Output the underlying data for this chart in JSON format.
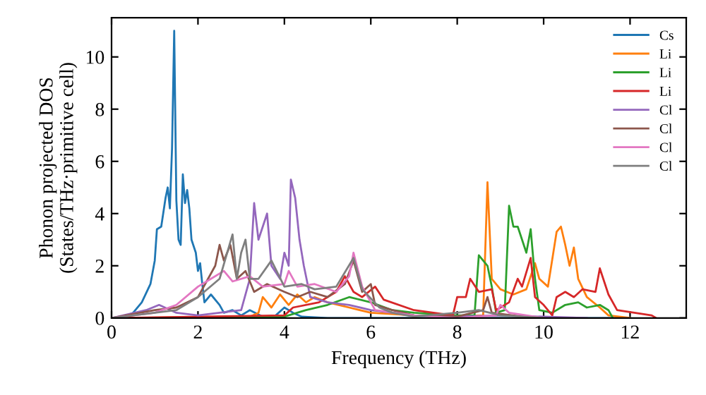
{
  "chart_data": {
    "type": "line",
    "xlabel": "Frequency (THz)",
    "ylabel": "Phonon projected DOS\n(States/THz·primitive cell)",
    "xlim": [
      0,
      13.3
    ],
    "ylim": [
      0,
      11.5
    ],
    "xticks": [
      0,
      2,
      4,
      6,
      8,
      10,
      12
    ],
    "yticks": [
      0,
      2,
      4,
      6,
      8,
      10
    ],
    "grid": false,
    "legend": "top right",
    "marker": "none",
    "line_style": "solid",
    "series": [
      {
        "name": "Cs",
        "color": "#1f77b4",
        "x": [
          0,
          0.3,
          0.5,
          0.7,
          0.9,
          1.0,
          1.05,
          1.15,
          1.25,
          1.3,
          1.35,
          1.4,
          1.45,
          1.5,
          1.55,
          1.6,
          1.65,
          1.7,
          1.75,
          1.8,
          1.85,
          1.95,
          2.0,
          2.05,
          2.1,
          2.15,
          2.3,
          2.5,
          2.6,
          2.8,
          3.0,
          3.2,
          3.5,
          3.8,
          4.0,
          4.2,
          4.4,
          5,
          7,
          12
        ],
        "values": [
          0,
          0.05,
          0.2,
          0.6,
          1.3,
          2.2,
          3.4,
          3.5,
          4.6,
          5.0,
          4.2,
          6.5,
          11.0,
          4.5,
          3.0,
          2.8,
          5.5,
          4.4,
          4.9,
          4.2,
          3.0,
          2.5,
          1.8,
          2.1,
          1.3,
          0.6,
          0.9,
          0.5,
          0.2,
          0.3,
          0.1,
          0.3,
          0.05,
          0.1,
          0.4,
          0.2,
          0.05,
          0,
          0,
          0
        ]
      },
      {
        "name": "Li",
        "color": "#ff7f0e",
        "x": [
          0,
          3.2,
          3.4,
          3.5,
          3.7,
          3.9,
          4.1,
          4.3,
          4.5,
          4.7,
          5,
          5.5,
          6,
          7,
          8,
          8.6,
          8.7,
          8.8,
          9.0,
          9.3,
          9.6,
          9.8,
          9.9,
          10.1,
          10.3,
          10.4,
          10.5,
          10.6,
          10.7,
          10.8,
          11.0,
          11.3,
          11.5,
          12
        ],
        "values": [
          0,
          0.05,
          0.2,
          0.8,
          0.4,
          0.9,
          0.5,
          0.9,
          0.6,
          0.8,
          0.6,
          0.4,
          0.2,
          0.1,
          0.05,
          0.1,
          5.2,
          1.5,
          1.1,
          0.9,
          1.1,
          2.1,
          1.5,
          1.2,
          3.3,
          3.5,
          2.8,
          2.0,
          2.7,
          1.5,
          0.8,
          0.4,
          0.1,
          0
        ]
      },
      {
        "name": "Li",
        "color": "#2ca02c",
        "x": [
          0,
          4,
          4.5,
          5,
          5.5,
          6,
          6.5,
          7,
          8,
          8.4,
          8.5,
          8.7,
          8.8,
          8.9,
          9.1,
          9.2,
          9.3,
          9.4,
          9.6,
          9.7,
          9.8,
          9.9,
          10.2,
          10.5,
          10.8,
          11.0,
          11.3,
          11.5,
          11.6
        ],
        "values": [
          0,
          0.05,
          0.3,
          0.5,
          0.8,
          0.6,
          0.3,
          0.2,
          0.1,
          0.1,
          2.4,
          2.0,
          1.2,
          0.2,
          0.3,
          4.3,
          3.5,
          3.5,
          2.5,
          3.4,
          1.5,
          0.3,
          0.2,
          0.5,
          0.6,
          0.4,
          0.5,
          0.3,
          0
        ]
      },
      {
        "name": "Li",
        "color": "#d62728",
        "x": [
          0,
          4,
          4.2,
          4.8,
          5.2,
          5.4,
          5.6,
          5.8,
          6.1,
          6.3,
          7,
          7.9,
          8.0,
          8.2,
          8.3,
          8.5,
          8.8,
          8.9,
          9.2,
          9.4,
          9.5,
          9.7,
          9.8,
          10.0,
          10.2,
          10.3,
          10.5,
          10.7,
          10.9,
          11.2,
          11.3,
          11.5,
          11.7,
          12.5,
          12.6
        ],
        "values": [
          0,
          0.1,
          0.4,
          0.6,
          1.0,
          1.6,
          1.0,
          0.8,
          1.2,
          0.7,
          0.3,
          0.1,
          0.8,
          0.8,
          1.5,
          1.0,
          1.1,
          0.3,
          0.6,
          1.5,
          1.2,
          2.3,
          0.8,
          0.5,
          0.1,
          0.8,
          1.0,
          0.8,
          1.1,
          1.0,
          1.9,
          0.9,
          0.3,
          0.1,
          0
        ]
      },
      {
        "name": "Cl",
        "color": "#9467bd",
        "x": [
          0,
          0.8,
          1.1,
          1.5,
          2.0,
          2.5,
          3.0,
          3.2,
          3.3,
          3.4,
          3.6,
          3.7,
          3.9,
          4.0,
          4.1,
          4.15,
          4.25,
          4.35,
          4.45,
          4.6,
          5,
          5.5,
          6,
          7,
          8,
          9,
          10,
          11
        ],
        "values": [
          0,
          0.3,
          0.5,
          0.2,
          0.1,
          0.2,
          0.3,
          1.5,
          4.4,
          3.0,
          4.0,
          2.0,
          1.5,
          2.5,
          2.0,
          5.3,
          4.6,
          3.0,
          2.0,
          0.8,
          0.6,
          0.5,
          0.3,
          0.1,
          0.05,
          0.1,
          0.05,
          0
        ]
      },
      {
        "name": "Cl",
        "color": "#8c564b",
        "x": [
          0,
          1,
          1.5,
          2,
          2.4,
          2.5,
          2.6,
          2.75,
          2.9,
          3.1,
          3.3,
          3.6,
          4,
          4.3,
          4.6,
          5,
          5.4,
          5.6,
          5.8,
          6,
          6.1,
          6.5,
          7,
          8,
          8.6,
          8.7,
          8.8,
          9.5,
          10
        ],
        "values": [
          0,
          0.3,
          0.4,
          0.8,
          2.0,
          2.8,
          2.2,
          2.8,
          1.5,
          1.8,
          1.0,
          1.3,
          1.0,
          0.8,
          1.0,
          0.8,
          1.3,
          2.2,
          1.0,
          1.3,
          0.5,
          0.3,
          0.1,
          0.05,
          0.3,
          0.8,
          0.2,
          0.05,
          0
        ]
      },
      {
        "name": "Cl",
        "color": "#e377c2",
        "x": [
          0,
          1,
          1.5,
          2,
          2.3,
          2.6,
          2.8,
          3.2,
          3.5,
          4.0,
          4.1,
          4.3,
          4.7,
          5.2,
          5.5,
          5.6,
          5.8,
          6.1,
          7,
          8,
          8.9,
          9.0,
          9.2,
          10
        ],
        "values": [
          0,
          0.2,
          0.5,
          1.2,
          1.5,
          1.8,
          1.4,
          1.6,
          1.2,
          1.3,
          1.8,
          1.2,
          1.3,
          1.0,
          1.6,
          2.5,
          1.2,
          0.3,
          0.1,
          0,
          0.1,
          0.5,
          0.2,
          0
        ]
      },
      {
        "name": "Cl",
        "color": "#7f7f7f",
        "x": [
          0,
          1,
          1.5,
          2,
          2.5,
          2.8,
          2.9,
          3.0,
          3.1,
          3.2,
          3.4,
          3.7,
          4,
          4.4,
          4.7,
          5.2,
          5.6,
          5.8,
          6.2,
          6.5,
          7,
          8,
          8.5,
          9,
          10
        ],
        "values": [
          0,
          0.2,
          0.3,
          0.8,
          1.5,
          3.2,
          1.5,
          2.5,
          3.0,
          1.5,
          1.5,
          2.2,
          1.2,
          1.3,
          1.1,
          1.2,
          2.3,
          1.1,
          0.4,
          0.2,
          0.05,
          0.2,
          0.3,
          0.1,
          0
        ]
      }
    ]
  }
}
